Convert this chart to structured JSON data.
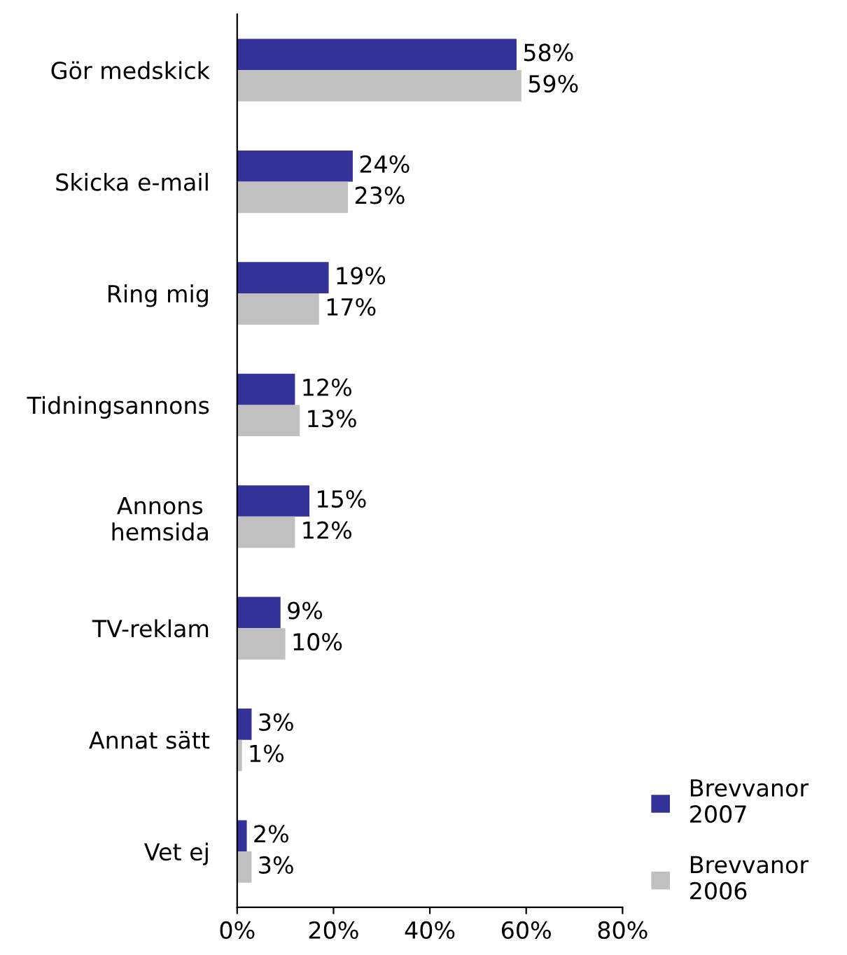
{
  "chart_data": {
    "type": "bar",
    "orientation": "horizontal",
    "categories": [
      "Gör medskick",
      "Skicka e-mail",
      "Ring mig",
      "Tidningsannons",
      "Annons\nhemsida",
      "TV-reklam",
      "Annat sätt",
      "Vet ej"
    ],
    "series": [
      {
        "name": "Brevvanor\n2007",
        "color": "#333399",
        "values": [
          58,
          24,
          19,
          12,
          15,
          9,
          3,
          2
        ],
        "value_labels": [
          "58%",
          "24%",
          "19%",
          "12%",
          "15%",
          "9%",
          "3%",
          "2%"
        ]
      },
      {
        "name": "Brevvanor\n2006",
        "color": "#c0c0c0",
        "values": [
          59,
          23,
          17,
          13,
          12,
          10,
          1,
          3
        ],
        "value_labels": [
          "59%",
          "23%",
          "17%",
          "13%",
          "12%",
          "10%",
          "1%",
          "3%"
        ]
      }
    ],
    "xlim": [
      0,
      80
    ],
    "xticks": [
      {
        "value": 0,
        "label": "0%"
      },
      {
        "value": 20,
        "label": "20%"
      },
      {
        "value": 40,
        "label": "40%"
      },
      {
        "value": 60,
        "label": "60%"
      },
      {
        "value": 80,
        "label": "80%"
      }
    ],
    "legend": "bottom right",
    "grid": false
  }
}
